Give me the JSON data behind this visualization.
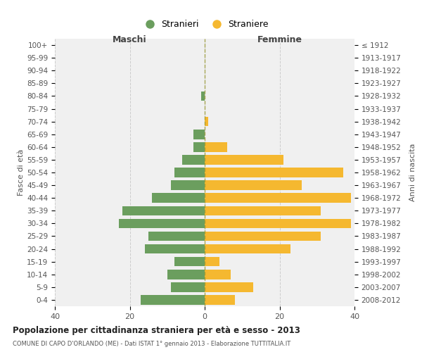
{
  "age_groups": [
    "100+",
    "95-99",
    "90-94",
    "85-89",
    "80-84",
    "75-79",
    "70-74",
    "65-69",
    "60-64",
    "55-59",
    "50-54",
    "45-49",
    "40-44",
    "35-39",
    "30-34",
    "25-29",
    "20-24",
    "15-19",
    "10-14",
    "5-9",
    "0-4"
  ],
  "birth_years": [
    "≤ 1912",
    "1913-1917",
    "1918-1922",
    "1923-1927",
    "1928-1932",
    "1933-1937",
    "1938-1942",
    "1943-1947",
    "1948-1952",
    "1953-1957",
    "1958-1962",
    "1963-1967",
    "1968-1972",
    "1973-1977",
    "1978-1982",
    "1983-1987",
    "1988-1992",
    "1993-1997",
    "1998-2002",
    "2003-2007",
    "2008-2012"
  ],
  "maschi": [
    0,
    0,
    0,
    0,
    1,
    0,
    0,
    3,
    3,
    6,
    8,
    9,
    14,
    22,
    23,
    15,
    16,
    8,
    10,
    9,
    17
  ],
  "femmine": [
    0,
    0,
    0,
    0,
    0,
    0,
    1,
    0,
    6,
    21,
    37,
    26,
    39,
    31,
    39,
    31,
    23,
    4,
    7,
    13,
    8
  ],
  "maschi_color": "#6b9e5e",
  "femmine_color": "#f5b830",
  "bg_color": "#f0f0f0",
  "grid_color": "#cccccc",
  "title": "Popolazione per cittadinanza straniera per età e sesso - 2013",
  "subtitle": "COMUNE DI CAPO D'ORLANDO (ME) - Dati ISTAT 1° gennaio 2013 - Elaborazione TUTTITALIA.IT",
  "xlabel_left": "Maschi",
  "xlabel_right": "Femmine",
  "ylabel_left": "Fasce di età",
  "ylabel_right": "Anni di nascita",
  "xlim": 40,
  "legend_stranieri": "Stranieri",
  "legend_straniere": "Straniere"
}
